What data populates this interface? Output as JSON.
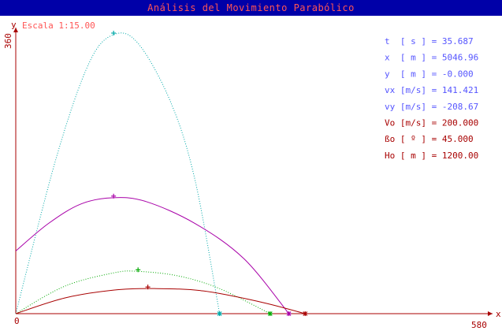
{
  "window": {
    "title": "Análisis del Movimiento Parabólico"
  },
  "colors": {
    "titlebar": "#0000a8",
    "title_text": "#ff5555",
    "axis": "#a80000",
    "readout_primary": "#5555ff",
    "readout_secondary": "#a80000",
    "scale_text": "#ff5555"
  },
  "scale_label": "Escala 1:15.00",
  "readouts": [
    {
      "text": "t  [ s ] = 35.687",
      "group": "primary"
    },
    {
      "text": "x  [ m ] = 5046.96",
      "group": "primary"
    },
    {
      "text": "y  [ m ] = -0.000",
      "group": "primary"
    },
    {
      "text": "vx [m/s] = 141.421",
      "group": "primary"
    },
    {
      "text": "vy [m/s] = -208.67",
      "group": "primary"
    },
    {
      "text": "Vo [m/s] = 200.000",
      "group": "secondary"
    },
    {
      "text": "ßo [ º ] = 45.000",
      "group": "secondary"
    },
    {
      "text": "Ho [ m ] = 1200.00",
      "group": "secondary"
    }
  ],
  "chart_data": {
    "type": "line",
    "title": "",
    "xlabel": "x",
    "ylabel": "y",
    "x_ticks": [
      "0",
      "580"
    ],
    "y_ticks": [
      "360"
    ],
    "xlim": [
      0,
      580
    ],
    "ylim": [
      0,
      360
    ],
    "grid": false,
    "series": [
      {
        "color": "#00a8a8",
        "style": "dotted",
        "points": [
          [
            0,
            0
          ],
          [
            50,
            200
          ],
          [
            90,
            320
          ],
          [
            120,
            356
          ],
          [
            150,
            345
          ],
          [
            190,
            270
          ],
          [
            220,
            170
          ],
          [
            250,
            0
          ]
        ]
      },
      {
        "color": "#a800a8",
        "style": "solid",
        "points": [
          [
            0,
            80
          ],
          [
            40,
            115
          ],
          [
            80,
            140
          ],
          [
            120,
            148
          ],
          [
            160,
            143
          ],
          [
            220,
            115
          ],
          [
            280,
            70
          ],
          [
            335,
            0
          ]
        ]
      },
      {
        "color": "#00a800",
        "style": "dotted",
        "points": [
          [
            0,
            0
          ],
          [
            60,
            35
          ],
          [
            120,
            52
          ],
          [
            150,
            54
          ],
          [
            200,
            48
          ],
          [
            250,
            32
          ],
          [
            312,
            0
          ]
        ]
      },
      {
        "color": "#a80000",
        "style": "solid",
        "points": [
          [
            0,
            0
          ],
          [
            60,
            20
          ],
          [
            120,
            30
          ],
          [
            170,
            32
          ],
          [
            230,
            29
          ],
          [
            300,
            15
          ],
          [
            355,
            0
          ]
        ]
      }
    ],
    "markers": [
      {
        "color": "#00a8a8",
        "x": 120,
        "y": 358,
        "symbol": "+"
      },
      {
        "color": "#00a8a8",
        "x": 250,
        "y": 0,
        "symbol": "*"
      },
      {
        "color": "#a800a8",
        "x": 120,
        "y": 150,
        "symbol": "+"
      },
      {
        "color": "#a800a8",
        "x": 335,
        "y": 0,
        "symbol": "*"
      },
      {
        "color": "#00a800",
        "x": 150,
        "y": 56,
        "symbol": "+"
      },
      {
        "color": "#00a800",
        "x": 312,
        "y": 0,
        "symbol": "*"
      },
      {
        "color": "#a80000",
        "x": 162,
        "y": 34,
        "symbol": "+"
      },
      {
        "color": "#a80000",
        "x": 355,
        "y": 0,
        "symbol": "*"
      }
    ]
  }
}
